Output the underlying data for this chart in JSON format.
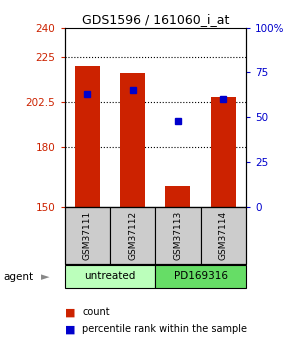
{
  "title": "GDS1596 / 161060_i_at",
  "samples": [
    "GSM37111",
    "GSM37112",
    "GSM37113",
    "GSM37114"
  ],
  "red_values": [
    220.5,
    217.0,
    160.5,
    205.0
  ],
  "blue_values_pct": [
    63,
    65,
    48,
    60
  ],
  "y_min": 150,
  "y_max": 240,
  "y_ticks": [
    150,
    180,
    202.5,
    225,
    240
  ],
  "y_right_ticks": [
    0,
    25,
    50,
    75,
    100
  ],
  "bar_bottom": 150,
  "bar_color": "#cc2200",
  "blue_color": "#0000cc",
  "agent_labels": [
    "untreated",
    "PD169316"
  ],
  "sample_box_color": "#cccccc",
  "agent_color_light": "#bbffbb",
  "agent_color_dark": "#66dd66",
  "legend_red": "count",
  "legend_blue": "percentile rank within the sample",
  "fig_width": 3.0,
  "fig_height": 3.45,
  "dpi": 100
}
